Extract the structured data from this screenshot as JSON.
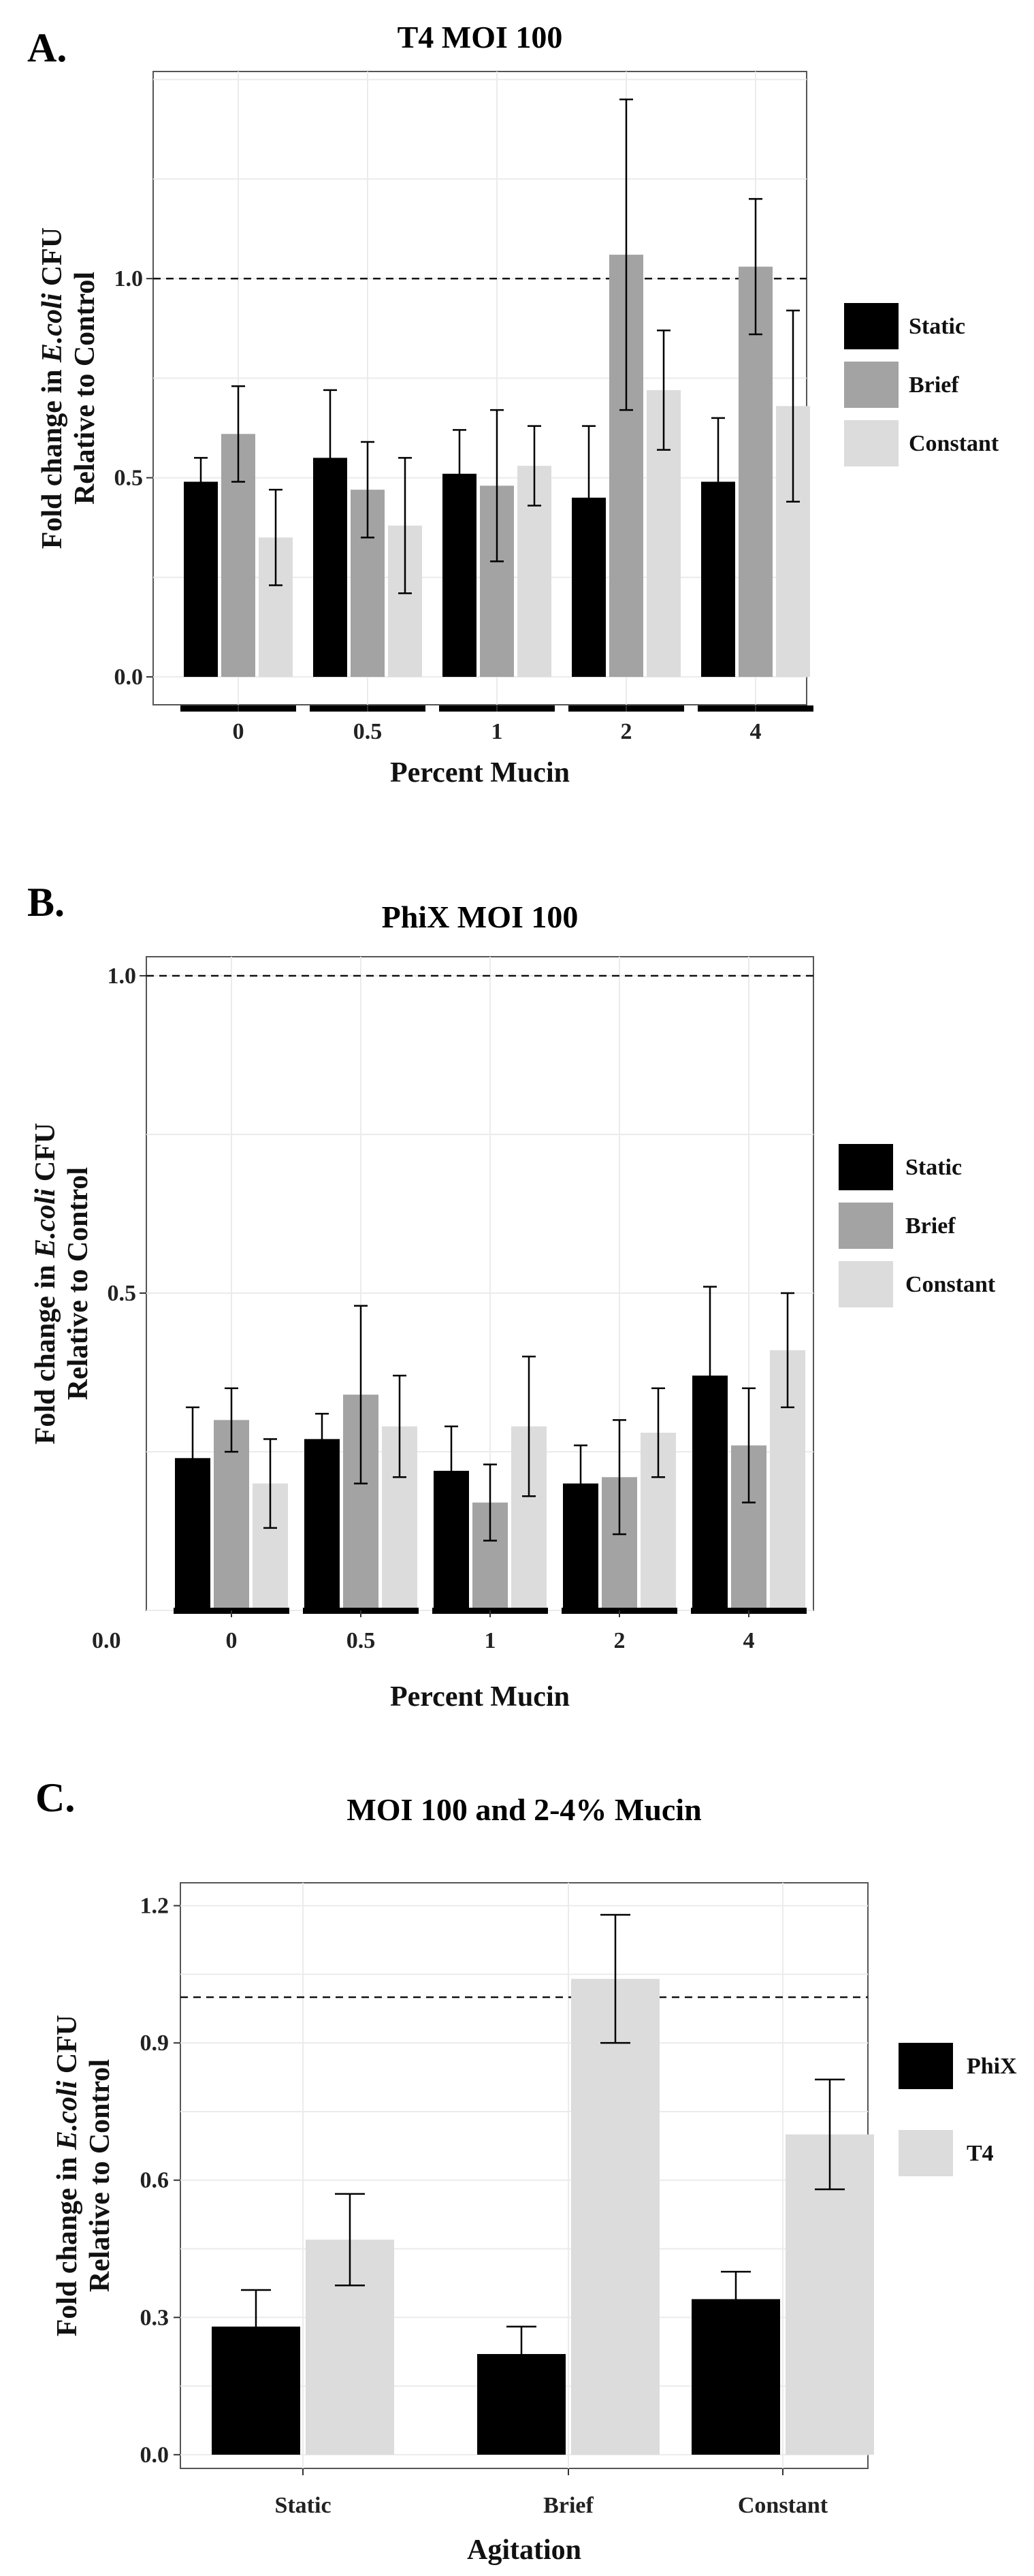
{
  "chart_data": [
    {
      "id": "A",
      "type": "bar",
      "panel_label": "A.",
      "title": "T4 MOI 100",
      "xlabel": "Percent Mucin",
      "ylabel_line1_prefix": "Fold change in ",
      "ylabel_line1_italic": "E.coli",
      "ylabel_line1_suffix": " CFU",
      "ylabel_line2": "Relative to Control",
      "categories": [
        "0",
        "0.5",
        "1",
        "2",
        "4"
      ],
      "ylim": [
        -0.07,
        1.52
      ],
      "yticks": [
        0.0,
        0.5,
        1.0
      ],
      "ytick_labels": [
        "0.0",
        "0.5",
        "1.0"
      ],
      "reference_line": 1.0,
      "grid": true,
      "legend_position": "right",
      "series": [
        {
          "name": "Static",
          "color": "#000000",
          "values": [
            0.49,
            0.55,
            0.51,
            0.45,
            0.49
          ],
          "errors": [
            0.06,
            0.17,
            0.11,
            0.18,
            0.16
          ]
        },
        {
          "name": "Brief",
          "color": "#a3a3a3",
          "values": [
            0.61,
            0.47,
            0.48,
            1.06,
            1.03
          ],
          "errors": [
            0.12,
            0.12,
            0.19,
            0.39,
            0.17
          ]
        },
        {
          "name": "Constant",
          "color": "#dcdcdc",
          "values": [
            0.35,
            0.38,
            0.53,
            0.72,
            0.68
          ],
          "errors": [
            0.12,
            0.17,
            0.1,
            0.15,
            0.24
          ]
        }
      ]
    },
    {
      "id": "B",
      "type": "bar",
      "panel_label": "B.",
      "title": "PhiX MOI 100",
      "xlabel": "Percent Mucin",
      "ylabel_line1_prefix": "Fold change in ",
      "ylabel_line1_italic": "E.coli",
      "ylabel_line1_suffix": " CFU",
      "ylabel_line2": "Relative to Control",
      "categories": [
        "0",
        "0.5",
        "1",
        "2",
        "4"
      ],
      "ylim": [
        0.0,
        1.03
      ],
      "yticks": [
        0.5,
        1.0
      ],
      "ytick_labels": [
        "0.5",
        "1.0"
      ],
      "extra_label": "0.0",
      "reference_line": 1.0,
      "grid": true,
      "legend_position": "right",
      "series": [
        {
          "name": "Static",
          "color": "#000000",
          "values": [
            0.24,
            0.27,
            0.22,
            0.2,
            0.37
          ],
          "errors": [
            0.08,
            0.04,
            0.07,
            0.06,
            0.14
          ]
        },
        {
          "name": "Brief",
          "color": "#a3a3a3",
          "values": [
            0.3,
            0.34,
            0.17,
            0.21,
            0.26
          ],
          "errors": [
            0.05,
            0.14,
            0.06,
            0.09,
            0.09
          ]
        },
        {
          "name": "Constant",
          "color": "#dcdcdc",
          "values": [
            0.2,
            0.29,
            0.29,
            0.28,
            0.41
          ],
          "errors": [
            0.07,
            0.08,
            0.11,
            0.07,
            0.09
          ]
        }
      ]
    },
    {
      "id": "C",
      "type": "bar",
      "panel_label": "C.",
      "title": "MOI 100 and 2-4% Mucin",
      "xlabel": "Agitation",
      "ylabel_line1_prefix": "Fold change in ",
      "ylabel_line1_italic": "E.coli",
      "ylabel_line1_suffix": " CFU",
      "ylabel_line2": "Relative to Control",
      "categories": [
        "Static",
        "Brief",
        "Constant"
      ],
      "ylim": [
        -0.03,
        1.25
      ],
      "yticks": [
        0.0,
        0.3,
        0.6,
        0.9,
        1.2
      ],
      "ytick_labels": [
        "0.0",
        "0.3",
        "0.6",
        "0.9",
        "1.2"
      ],
      "reference_line": 1.0,
      "grid": true,
      "legend_position": "right",
      "series": [
        {
          "name": "PhiX",
          "color": "#000000",
          "values": [
            0.28,
            0.22,
            0.34
          ],
          "errors": [
            0.08,
            0.06,
            0.06
          ]
        },
        {
          "name": "T4",
          "color": "#dcdcdc",
          "values": [
            0.47,
            1.04,
            0.7
          ],
          "errors": [
            0.1,
            0.14,
            0.12
          ]
        }
      ]
    }
  ]
}
